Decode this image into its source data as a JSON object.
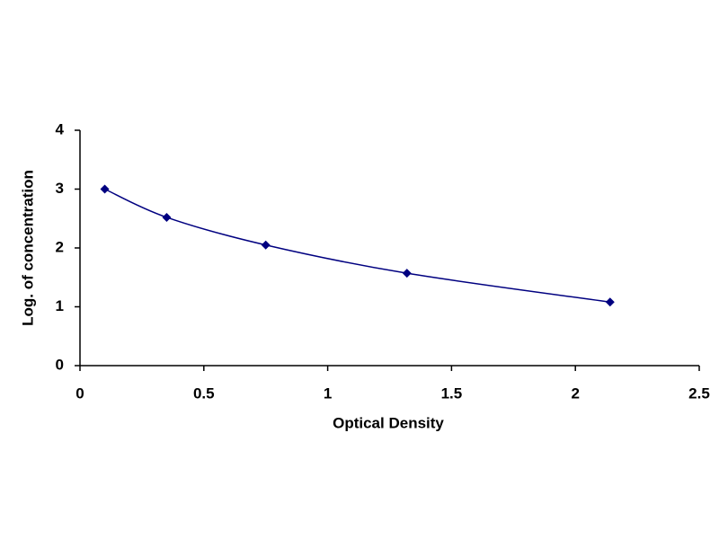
{
  "chart_data": {
    "type": "line",
    "x_label": "Optical Density",
    "y_label": "Log. of concentration",
    "x": [
      0.1,
      0.35,
      0.75,
      1.32,
      2.14
    ],
    "values": [
      3.0,
      2.52,
      2.05,
      1.57,
      1.08
    ],
    "color": "#000080",
    "smooth": true,
    "xlim": [
      0,
      2.5
    ],
    "xticks": [
      0,
      0.5,
      1,
      1.5,
      2,
      2.5
    ],
    "ylim": [
      0,
      4
    ],
    "yticks": [
      0,
      1,
      2,
      3,
      4
    ],
    "grid": false
  }
}
